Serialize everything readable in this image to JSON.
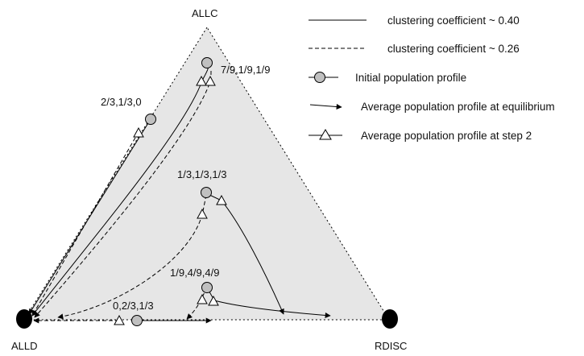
{
  "vertices": {
    "top": "ALLC",
    "bottom_left": "ALLD",
    "bottom_right": "RDISC"
  },
  "point_labels": {
    "p1": "7/9,1/9,1/9",
    "p2": "2/3,1/3,0",
    "p3": "1/3,1/3,1/3",
    "p4": "1/9,4/9,4/9",
    "p5": "0,2/3,1/3"
  },
  "legend": {
    "solid_line": "clustering coefficient ~ 0.40",
    "dashed_line": "clustering coefficient ~ 0.26",
    "initial": "Initial population profile",
    "equilibrium": "Average population profile at equilibrium",
    "step2": "Average population profile at step 2"
  },
  "colors": {
    "triangle_fill": "#e6e6e6",
    "marker_fill": "#c0c0c0",
    "vertex_marker": "#000000",
    "line": "#000000"
  }
}
